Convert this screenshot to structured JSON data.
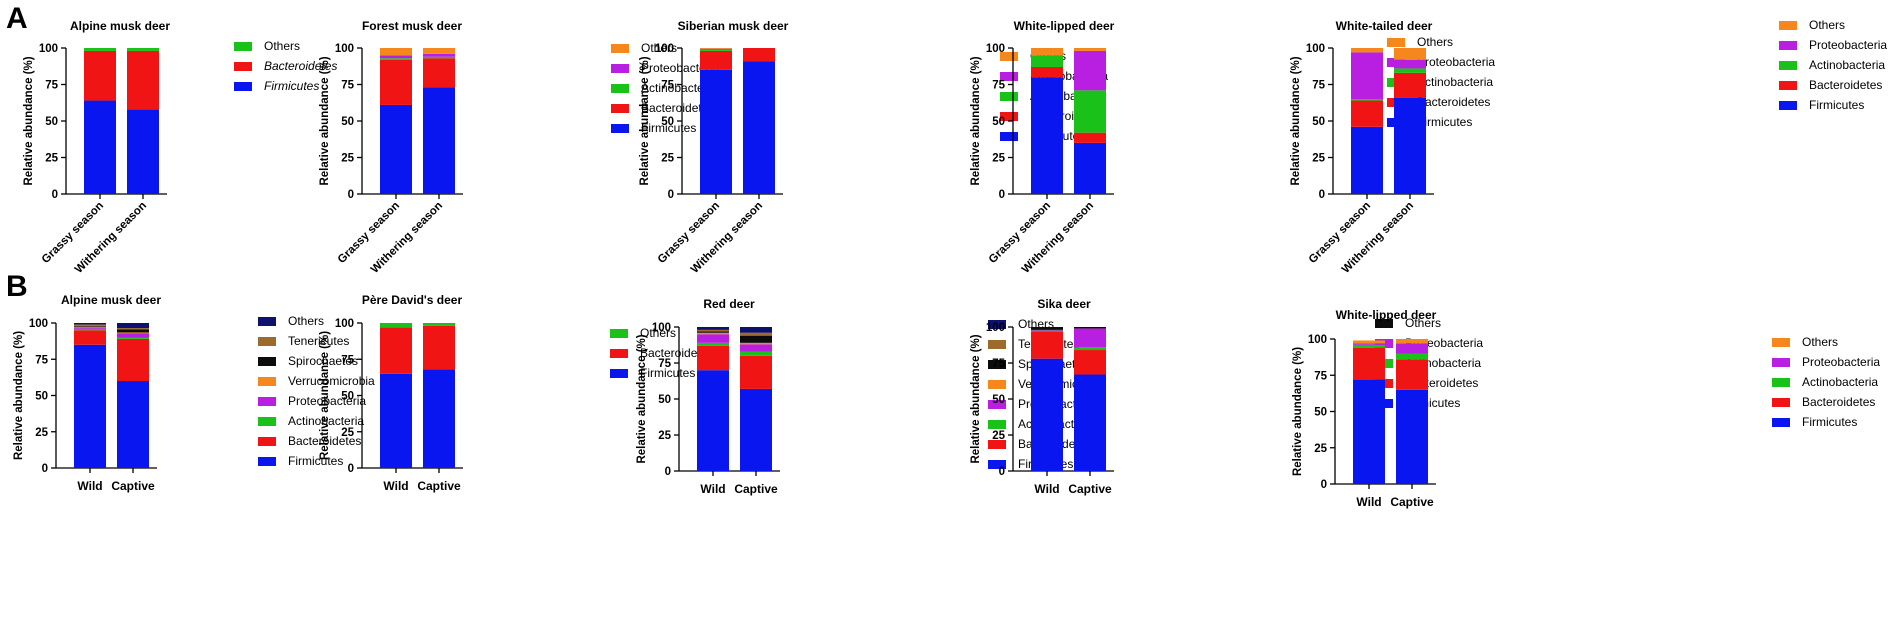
{
  "panels": [
    {
      "label": "A"
    },
    {
      "label": "B"
    }
  ],
  "colors": {
    "Firmicutes": "#0a16f0",
    "Bacteroidetes": "#f01414",
    "Actinobacteria": "#19c119",
    "Proteobacteria": "#b91fe0",
    "Verrucomicrobia": "#f5871c",
    "Spirochaetes": "#0c0c0c",
    "Tenericutes": "#9c6b2c",
    "Others_green": "#19c119",
    "Others_orange": "#f5871c",
    "Others_navy": "#0e116e",
    "Others_black": "#0c0c0c"
  },
  "chart_data": [
    {
      "type": "bar",
      "stacked": true,
      "panel": "A",
      "title": "Alpine musk deer",
      "ylabel": "Relative abundance (%)",
      "ylim": [
        0,
        100
      ],
      "yticks": [
        0,
        25,
        50,
        75,
        100
      ],
      "categories": [
        "Grassy season",
        "Withering season"
      ],
      "series": [
        {
          "name": "Firmicutes",
          "italic": true,
          "color_key": "Firmicutes",
          "values": [
            64,
            58
          ]
        },
        {
          "name": "Bacteroidetes",
          "italic": true,
          "color_key": "Bacteroidetes",
          "values": [
            34,
            40
          ]
        },
        {
          "name": "Others",
          "color_key": "Others_green",
          "values": [
            2,
            2
          ]
        }
      ]
    },
    {
      "type": "bar",
      "stacked": true,
      "panel": "A",
      "title": "Forest musk deer",
      "ylabel": "Relative abundance (%)",
      "ylim": [
        0,
        100
      ],
      "yticks": [
        0,
        25,
        50,
        75,
        100
      ],
      "categories": [
        "Grassy season",
        "Withering season"
      ],
      "series": [
        {
          "name": "Firmicutes",
          "color_key": "Firmicutes",
          "values": [
            61,
            73
          ]
        },
        {
          "name": "Bacteroidetes",
          "color_key": "Bacteroidetes",
          "values": [
            31,
            20
          ]
        },
        {
          "name": "Actinobacteria",
          "color_key": "Actinobacteria",
          "values": [
            1,
            1
          ]
        },
        {
          "name": "Proteobacteria",
          "color_key": "Proteobacteria",
          "values": [
            2,
            2
          ]
        },
        {
          "name": "Others",
          "color_key": "Others_orange",
          "values": [
            5,
            4
          ]
        }
      ]
    },
    {
      "type": "bar",
      "stacked": true,
      "panel": "A",
      "title": "Siberian musk deer",
      "ylabel": "Relative abundance (%)",
      "ylim": [
        0,
        100
      ],
      "yticks": [
        0,
        25,
        50,
        75,
        100
      ],
      "categories": [
        "Grassy season",
        "Withering season"
      ],
      "series": [
        {
          "name": "Firmicutes",
          "color_key": "Firmicutes",
          "values": [
            85,
            91
          ]
        },
        {
          "name": "Bacteroidetes",
          "color_key": "Bacteroidetes",
          "values": [
            13,
            9
          ]
        },
        {
          "name": "Actinobacteria",
          "color_key": "Actinobacteria",
          "values": [
            1,
            0
          ]
        },
        {
          "name": "Proteobacteria",
          "color_key": "Proteobacteria",
          "values": [
            0.5,
            0
          ]
        },
        {
          "name": "Others",
          "color_key": "Others_orange",
          "values": [
            0.5,
            0
          ]
        }
      ]
    },
    {
      "type": "bar",
      "stacked": true,
      "panel": "A",
      "title": "White-lipped deer",
      "ylabel": "Relative abundance (%)",
      "ylim": [
        0,
        100
      ],
      "yticks": [
        0,
        25,
        50,
        75,
        100
      ],
      "categories": [
        "Grassy season",
        "Withering season"
      ],
      "series": [
        {
          "name": "Firmicutes",
          "color_key": "Firmicutes",
          "values": [
            80,
            35
          ]
        },
        {
          "name": "Bacteroidetes",
          "color_key": "Bacteroidetes",
          "values": [
            7,
            7
          ]
        },
        {
          "name": "Actinobacteria",
          "color_key": "Actinobacteria",
          "values": [
            8,
            29
          ]
        },
        {
          "name": "Proteobacteria",
          "color_key": "Proteobacteria",
          "values": [
            0,
            27
          ]
        },
        {
          "name": "Others",
          "color_key": "Others_orange",
          "values": [
            5,
            2
          ]
        }
      ]
    },
    {
      "type": "bar",
      "stacked": true,
      "panel": "A",
      "title": "White-tailed deer",
      "ylabel": "Relative abundance (%)",
      "ylim": [
        0,
        100
      ],
      "yticks": [
        0,
        25,
        50,
        75,
        100
      ],
      "categories": [
        "Grassy season",
        "Withering season"
      ],
      "series": [
        {
          "name": "Firmicutes",
          "color_key": "Firmicutes",
          "values": [
            46,
            66
          ]
        },
        {
          "name": "Bacteroidetes",
          "color_key": "Bacteroidetes",
          "values": [
            18,
            17
          ]
        },
        {
          "name": "Actinobacteria",
          "color_key": "Actinobacteria",
          "values": [
            1,
            3
          ]
        },
        {
          "name": "Proteobacteria",
          "color_key": "Proteobacteria",
          "values": [
            32,
            6
          ]
        },
        {
          "name": "Others",
          "color_key": "Others_orange",
          "values": [
            3,
            8
          ]
        }
      ]
    },
    {
      "type": "bar",
      "stacked": true,
      "panel": "B",
      "title": "Alpine musk deer",
      "ylabel": "Relative abundance (%)",
      "ylim": [
        0,
        100
      ],
      "yticks": [
        0,
        25,
        50,
        75,
        100
      ],
      "categories": [
        "Wild",
        "Captive"
      ],
      "series": [
        {
          "name": "Firmicutes",
          "color_key": "Firmicutes",
          "values": [
            85,
            60
          ]
        },
        {
          "name": "Bacteroidetes",
          "color_key": "Bacteroidetes",
          "values": [
            10,
            29
          ]
        },
        {
          "name": "Actinobacteria",
          "color_key": "Actinobacteria",
          "values": [
            1,
            1
          ]
        },
        {
          "name": "Proteobacteria",
          "color_key": "Proteobacteria",
          "values": [
            1,
            3
          ]
        },
        {
          "name": "Verrucomicrobia",
          "color_key": "Verrucomicrobia",
          "values": [
            0.5,
            0.5
          ]
        },
        {
          "name": "Spirochaetes",
          "color_key": "Spirochaetes",
          "values": [
            0.5,
            2
          ]
        },
        {
          "name": "Tenericutes",
          "color_key": "Tenericutes",
          "values": [
            1,
            1
          ]
        },
        {
          "name": "Others",
          "color_key": "Others_navy",
          "values": [
            1,
            3.5
          ]
        }
      ]
    },
    {
      "type": "bar",
      "stacked": true,
      "panel": "B",
      "title": "Père David's deer",
      "ylabel": "Relative abundance (%)",
      "ylim": [
        0,
        100
      ],
      "yticks": [
        0,
        25,
        50,
        75,
        100
      ],
      "categories": [
        "Wild",
        "Captive"
      ],
      "series": [
        {
          "name": "Firmicutes",
          "color_key": "Firmicutes",
          "values": [
            65,
            68
          ]
        },
        {
          "name": "Bacteroidetes",
          "color_key": "Bacteroidetes",
          "values": [
            32,
            30
          ]
        },
        {
          "name": "Others",
          "color_key": "Others_green",
          "values": [
            3,
            2
          ]
        }
      ]
    },
    {
      "type": "bar",
      "stacked": true,
      "panel": "B",
      "title": "Red deer",
      "ylabel": "Relative abundance (%)",
      "ylim": [
        0,
        100
      ],
      "yticks": [
        0,
        25,
        50,
        75,
        100
      ],
      "categories": [
        "Wild",
        "Captive"
      ],
      "series": [
        {
          "name": "Firmicutes",
          "color_key": "Firmicutes",
          "values": [
            70,
            57
          ]
        },
        {
          "name": "Bacteroidetes",
          "color_key": "Bacteroidetes",
          "values": [
            17,
            23
          ]
        },
        {
          "name": "Actinobacteria",
          "color_key": "Actinobacteria",
          "values": [
            2,
            3
          ]
        },
        {
          "name": "Proteobacteria",
          "color_key": "Proteobacteria",
          "values": [
            6,
            5
          ]
        },
        {
          "name": "Verrucomicrobia",
          "color_key": "Verrucomicrobia",
          "values": [
            1,
            1
          ]
        },
        {
          "name": "Spirochaetes",
          "color_key": "Spirochaetes",
          "values": [
            1,
            5
          ]
        },
        {
          "name": "Tenericutes",
          "color_key": "Tenericutes",
          "values": [
            1,
            2
          ]
        },
        {
          "name": "Others",
          "color_key": "Others_navy",
          "values": [
            2,
            4
          ]
        }
      ]
    },
    {
      "type": "bar",
      "stacked": true,
      "panel": "B",
      "title": "Sika deer",
      "ylabel": "Relative abundance (%)",
      "ylim": [
        0,
        100
      ],
      "yticks": [
        0,
        25,
        50,
        75,
        100
      ],
      "categories": [
        "Wild",
        "Captive"
      ],
      "series": [
        {
          "name": "Firmicutes",
          "color_key": "Firmicutes",
          "values": [
            78,
            67
          ]
        },
        {
          "name": "Bacteroidetes",
          "color_key": "Bacteroidetes",
          "values": [
            19,
            17
          ]
        },
        {
          "name": "Actinobacteria",
          "color_key": "Actinobacteria",
          "values": [
            0.5,
            2
          ]
        },
        {
          "name": "Proteobacteria",
          "color_key": "Proteobacteria",
          "values": [
            0.5,
            13
          ]
        },
        {
          "name": "Others",
          "color_key": "Others_black",
          "values": [
            2,
            1
          ]
        }
      ]
    },
    {
      "type": "bar",
      "stacked": true,
      "panel": "B",
      "title": "White-lipped deer",
      "ylabel": "Relative abundance (%)",
      "ylim": [
        0,
        100
      ],
      "yticks": [
        0,
        25,
        50,
        75,
        100
      ],
      "categories": [
        "Wild",
        "Captive"
      ],
      "series": [
        {
          "name": "Firmicutes",
          "color_key": "Firmicutes",
          "values": [
            72,
            65
          ]
        },
        {
          "name": "Bacteroidetes",
          "color_key": "Bacteroidetes",
          "values": [
            22,
            21
          ]
        },
        {
          "name": "Actinobacteria",
          "color_key": "Actinobacteria",
          "values": [
            2,
            4
          ]
        },
        {
          "name": "Proteobacteria",
          "color_key": "Proteobacteria",
          "values": [
            1,
            7
          ]
        },
        {
          "name": "Others",
          "color_key": "Others_orange",
          "values": [
            2,
            3
          ]
        }
      ]
    }
  ]
}
